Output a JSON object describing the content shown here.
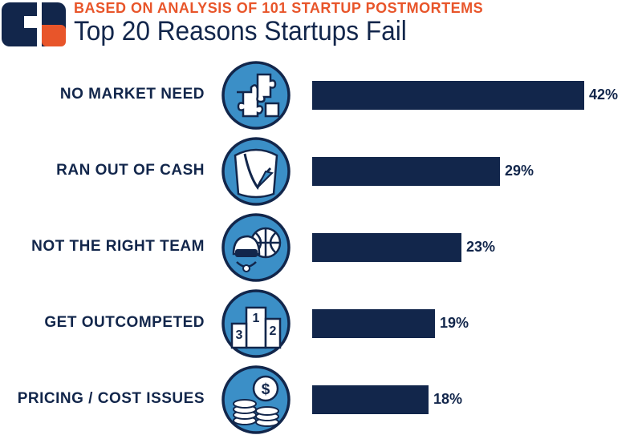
{
  "subtitle": "BASED ON ANALYSIS OF 101 STARTUP POSTMORTEMS",
  "title": "Top 20 Reasons Startups Fail",
  "colors": {
    "navy": "#12264b",
    "orange": "#e8552a",
    "icon_blue": "#3b8fc7"
  },
  "chart_data": {
    "type": "bar",
    "orientation": "horizontal",
    "categories": [
      "NO MARKET NEED",
      "RAN OUT OF CASH",
      "NOT THE RIGHT TEAM",
      "GET OUTCOMPETED",
      "PRICING / COST ISSUES"
    ],
    "values": [
      42,
      29,
      23,
      19,
      18
    ],
    "value_labels": [
      "42%",
      "29%",
      "23%",
      "19%",
      "18%"
    ],
    "icons": [
      "puzzle-icon",
      "empty-pocket-icon",
      "team-icon",
      "podium-icon",
      "coins-icon"
    ],
    "podium_numbers": [
      "1",
      "2",
      "3"
    ],
    "coin_symbol": "$",
    "unit": "%",
    "xlim": [
      0,
      42
    ],
    "grid": false,
    "legend": "none"
  }
}
